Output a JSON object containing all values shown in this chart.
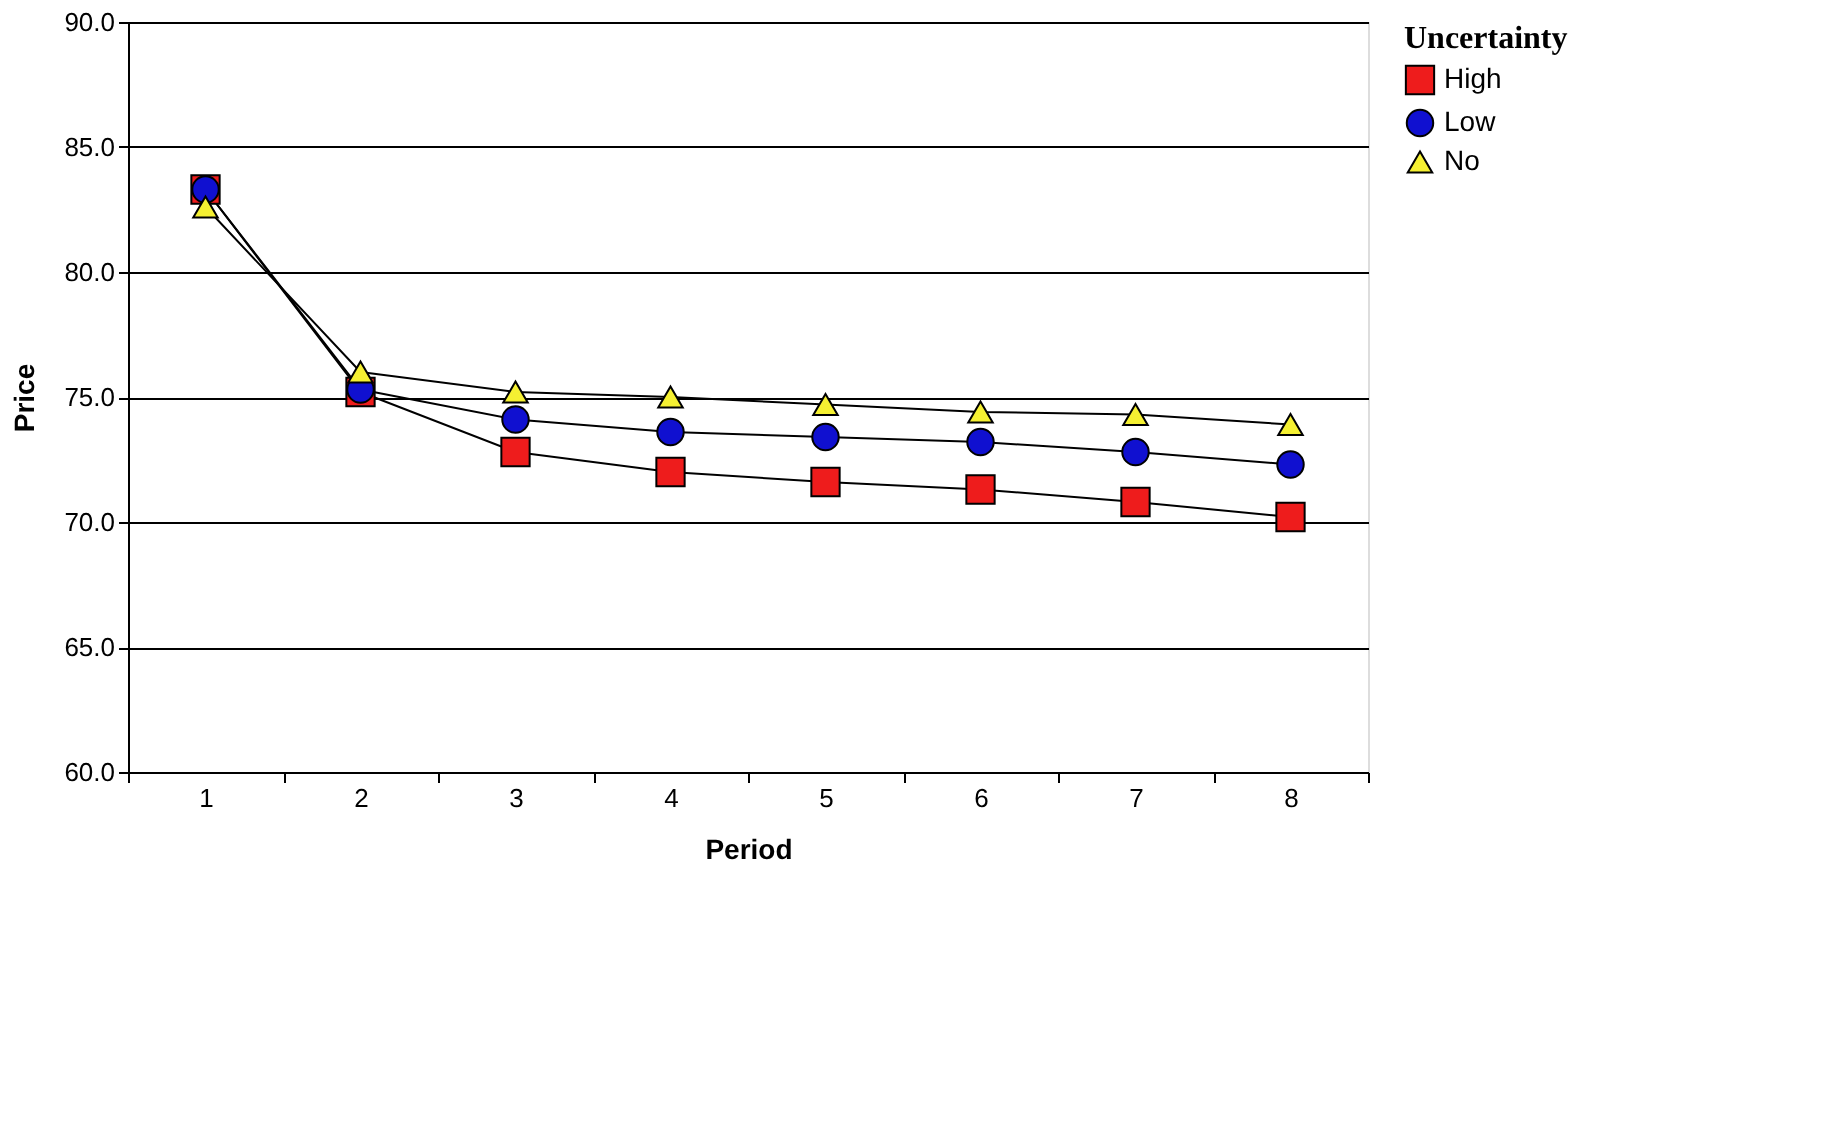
{
  "chart_data": {
    "type": "line",
    "xlabel": "Period",
    "ylabel": "Price",
    "legend_title": "Uncertainty",
    "categories": [
      "1",
      "2",
      "3",
      "4",
      "5",
      "6",
      "7",
      "8"
    ],
    "series": [
      {
        "name": "High",
        "color": "#ee1c1c",
        "marker": "square",
        "values": [
          83.3,
          75.2,
          72.8,
          72.0,
          71.6,
          71.3,
          70.8,
          70.2
        ]
      },
      {
        "name": "Low",
        "color": "#1010d0",
        "marker": "circle",
        "values": [
          83.3,
          75.3,
          74.1,
          73.6,
          73.4,
          73.2,
          72.8,
          72.3
        ]
      },
      {
        "name": "No",
        "color": "#f5f032",
        "marker": "triangle",
        "values": [
          82.6,
          76.0,
          75.2,
          75.0,
          74.7,
          74.4,
          74.3,
          73.9
        ]
      }
    ],
    "ylim": [
      60,
      90
    ],
    "yticks": [
      {
        "value": 60,
        "label": "60.0"
      },
      {
        "value": 65,
        "label": "65.0"
      },
      {
        "value": 70,
        "label": "70.0"
      },
      {
        "value": 75,
        "label": "75.0"
      },
      {
        "value": 80,
        "label": "80.0"
      },
      {
        "value": 85,
        "label": "85.0"
      },
      {
        "value": 90,
        "label": "90.0"
      }
    ],
    "grid": "y",
    "legend": "right",
    "line_style": "solid"
  }
}
